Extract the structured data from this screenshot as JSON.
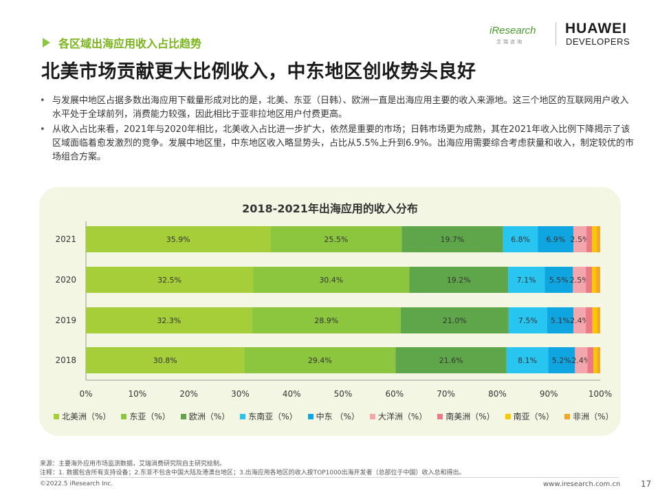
{
  "header": {
    "section_tag": "各区域出海应用收入占比趋势",
    "title": "北美市场贡献更大比例收入，中东地区创收势头良好",
    "logo_iresearch": "iResearch",
    "logo_iresearch_sub": "艾瑞咨询",
    "logo_huawei": "HUAWEI",
    "logo_developers": "DEVELOPERS"
  },
  "bullets": [
    "与发展中地区占据多数出海应用下载量形成对比的是，北美、东亚（日韩）、欧洲一直是出海应用主要的收入来源地。这三个地区的互联网用户收入水平处于全球前列，消费能力较强，因此相比于亚非拉地区用户付费更高。",
    "从收入占比来看，2021年与2020年相比，北美收入占比进一步扩大，依然是重要的市场；日韩市场更为成熟，其在2021年收入比例下降揭示了该区域面临着愈发激烈的竞争。发展中地区里，中东地区收入略显势头，占比从5.5%上升到6.9%。出海应用需要综合考虑获量和收入，制定较优的市场组合方案。"
  ],
  "chart_data": {
    "type": "bar",
    "orientation": "horizontal",
    "stacked": true,
    "title": "2018-2021年出海应用的收入分布",
    "categories": [
      "2021",
      "2020",
      "2019",
      "2018"
    ],
    "xlim": [
      0,
      100
    ],
    "x_ticks": [
      "0%",
      "10%",
      "20%",
      "30%",
      "40%",
      "50%",
      "60%",
      "70%",
      "80%",
      "90%",
      "100%"
    ],
    "series": [
      {
        "name": "北美洲（%）",
        "color": "#a6ce39",
        "label_color": "#333333",
        "values": [
          35.9,
          32.5,
          32.3,
          30.8
        ],
        "labels": [
          "35.9%",
          "32.5%",
          "32.3%",
          "30.8%"
        ]
      },
      {
        "name": "东亚（%）",
        "color": "#8cc63f",
        "label_color": "#333333",
        "values": [
          25.5,
          30.4,
          28.9,
          29.4
        ],
        "labels": [
          "25.5%",
          "30.4%",
          "28.9%",
          "29.4%"
        ]
      },
      {
        "name": "欧洲（%）",
        "color": "#5fa64a",
        "label_color": "#333333",
        "values": [
          19.7,
          19.2,
          21.0,
          21.6
        ],
        "labels": [
          "19.7%",
          "19.2%",
          "21.0%",
          "21.6%"
        ]
      },
      {
        "name": "东南亚（%）",
        "color": "#29c5f1",
        "label_color": "#333333",
        "values": [
          6.8,
          7.1,
          7.5,
          8.1
        ],
        "labels": [
          "6.8%",
          "7.1%",
          "7.5%",
          "8.1%"
        ]
      },
      {
        "name": "中东 （%）",
        "color": "#0ea5e0",
        "label_color": "#333333",
        "values": [
          6.9,
          5.5,
          5.1,
          5.2
        ],
        "labels": [
          "6.9%",
          "5.5%",
          "5.1%",
          "5.2%"
        ]
      },
      {
        "name": "大洋洲（%）",
        "color": "#f4a6ad",
        "label_color": "#333333",
        "values": [
          2.5,
          2.5,
          2.4,
          2.4
        ],
        "labels": [
          "2.5%",
          "2.5%",
          "2.4%",
          "2.4%"
        ]
      },
      {
        "name": "南美洲（%）",
        "color": "#ec7a86",
        "label_color": "#333333",
        "values": [
          1.1,
          1.2,
          1.3,
          1.2
        ],
        "labels": [
          "",
          "",
          "",
          ""
        ]
      },
      {
        "name": "南亚（%）",
        "color": "#f9c800",
        "label_color": "#333333",
        "values": [
          0.9,
          0.8,
          0.9,
          0.7
        ],
        "labels": [
          "",
          "",
          "",
          ""
        ]
      },
      {
        "name": "非洲（%）",
        "color": "#f5a623",
        "label_color": "#333333",
        "values": [
          0.7,
          0.8,
          0.6,
          0.6
        ],
        "labels": [
          "",
          "",
          "",
          ""
        ]
      }
    ]
  },
  "footnotes": {
    "source": "来源：主要海外应用市场监测数据，艾瑞消费研究院自主研究绘制。",
    "notes": "注释：1. 数据包含所有支持设备；2.东亚不包含中国大陆及港澳台地区；3.出海应用各地区的收入按TOP1000出海开发者（总部位于中国）收入总和得出。"
  },
  "footer": {
    "copyright": "©2022.5 iResearch Inc.",
    "website": "www.iresearch.com.cn",
    "page_number": "17"
  }
}
